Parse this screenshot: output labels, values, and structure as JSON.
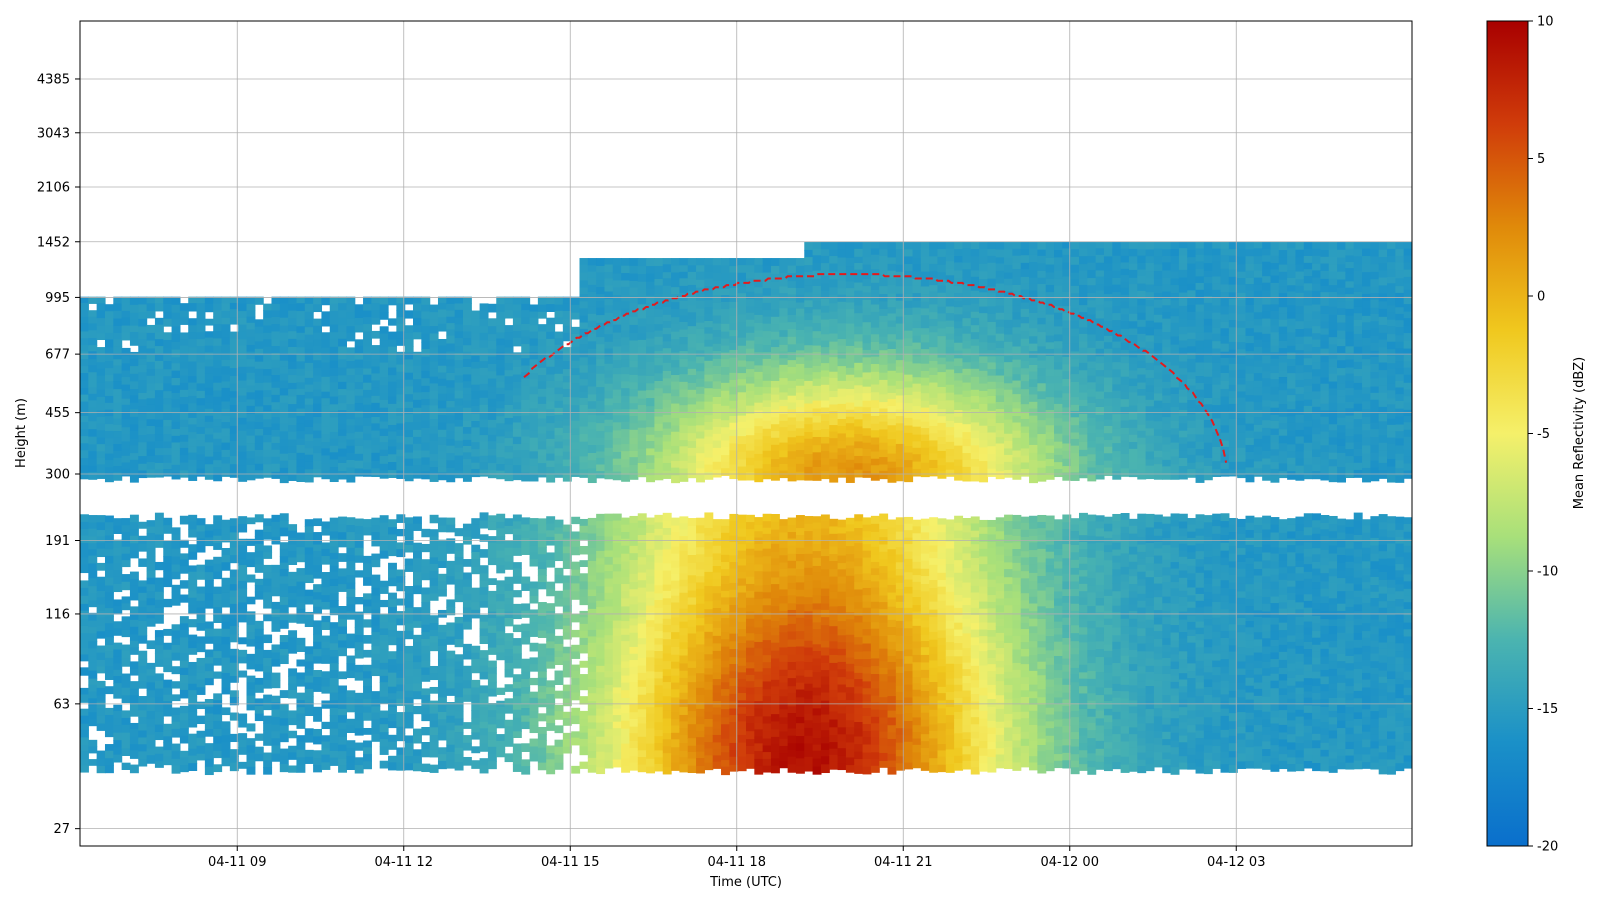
{
  "chart_data": {
    "type": "heatmap",
    "title": "",
    "xlabel": "Time (UTC)",
    "ylabel": "Height (m)",
    "x_range": [
      "2024-04-11 06:10",
      "2024-04-12 06:10"
    ],
    "x_ticks": [
      {
        "time": "2024-04-11 09:00",
        "label": "04-11 09"
      },
      {
        "time": "2024-04-11 12:00",
        "label": "04-11 12"
      },
      {
        "time": "2024-04-11 15:00",
        "label": "04-11 15"
      },
      {
        "time": "2024-04-11 18:00",
        "label": "04-11 18"
      },
      {
        "time": "2024-04-11 21:00",
        "label": "04-11 21"
      },
      {
        "time": "2024-04-12 00:00",
        "label": "04-12 00"
      },
      {
        "time": "2024-04-12 03:00",
        "label": "04-12 03"
      }
    ],
    "y_scale": "log",
    "y_range": [
      24,
      6500
    ],
    "y_ticks": [
      27,
      63,
      116,
      191,
      300,
      455,
      677,
      995,
      1452,
      2106,
      3043,
      4385
    ],
    "colorbar": {
      "label": "Mean Reflectivity (dBZ)",
      "min": -20,
      "max": 10,
      "ticks": [
        -20,
        -15,
        -10,
        -5,
        0,
        5,
        10
      ],
      "colors": [
        "#0a6fcc",
        "#1a90c8",
        "#4bb4b0",
        "#a8e07a",
        "#f5f06a",
        "#f0c81e",
        "#e08a0a",
        "#d03c0a",
        "#a80000"
      ]
    },
    "grid": true,
    "contour": {
      "color": "#e41a1c",
      "style": "dashed",
      "level_dbz": -15
    },
    "cloud_layers": [
      {
        "name": "upper",
        "bottom_m": 290,
        "top_m": 1450,
        "start": "2024-04-11 06:10",
        "end": "2024-04-12 06:10"
      },
      {
        "name": "lower",
        "bottom_m": 40,
        "top_m": 225,
        "start": "2024-04-11 06:10",
        "end": "2024-04-12 06:10"
      }
    ],
    "core": {
      "peak_dbz": 9,
      "peak_time": "2024-04-11 19:15",
      "peak_height_m": 45
    }
  }
}
